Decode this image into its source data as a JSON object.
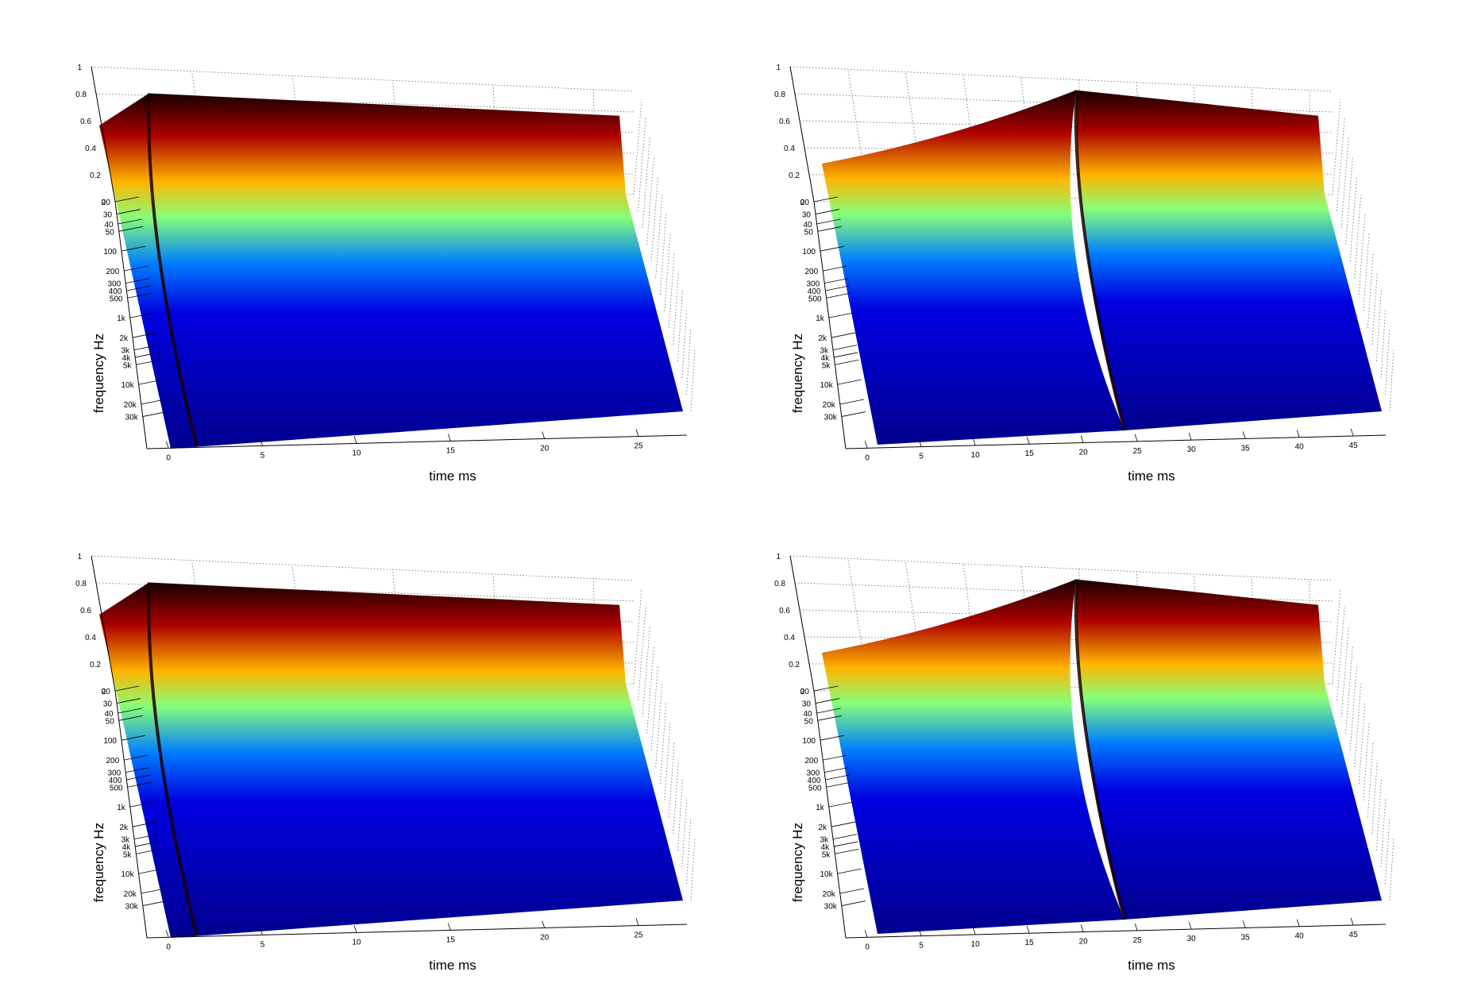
{
  "figure": {
    "colormap": [
      "#00008f",
      "#0000ff",
      "#0080ff",
      "#00ffff",
      "#80ff80",
      "#ffff00",
      "#ff8000",
      "#ff0000",
      "#800000",
      "#000000"
    ],
    "panels": [
      {
        "id": "top-left",
        "xlabel": "time   ms",
        "ylabel": "frequency   Hz",
        "xticks": [
          "0",
          "5",
          "10",
          "15",
          "20",
          "25"
        ],
        "yticks": [
          "20",
          "30",
          "40",
          "50",
          "100",
          "200",
          "300",
          "400",
          "500",
          "1k",
          "2k",
          "3k",
          "4k",
          "5k",
          "10k",
          "20k",
          "30k"
        ],
        "zticks": [
          "0",
          "0.2",
          "0.4",
          "0.6",
          "0.8",
          "1"
        ]
      },
      {
        "id": "top-right",
        "xlabel": "time   ms",
        "ylabel": "frequency   Hz",
        "xticks": [
          "0",
          "5",
          "10",
          "15",
          "20",
          "25",
          "30",
          "35",
          "40",
          "45"
        ],
        "yticks": [
          "20",
          "30",
          "40",
          "50",
          "100",
          "200",
          "300",
          "400",
          "500",
          "1k",
          "2k",
          "3k",
          "4k",
          "5k",
          "10k",
          "20k",
          "30k"
        ],
        "zticks": [
          "0",
          "0.2",
          "0.4",
          "0.6",
          "0.8",
          "1"
        ]
      },
      {
        "id": "bottom-left",
        "xlabel": "time   ms",
        "ylabel": "frequency   Hz",
        "xticks": [
          "0",
          "5",
          "10",
          "15",
          "20",
          "25"
        ],
        "yticks": [
          "20",
          "30",
          "40",
          "50",
          "100",
          "200",
          "300",
          "400",
          "500",
          "1k",
          "2k",
          "3k",
          "4k",
          "5k",
          "10k",
          "20k",
          "30k"
        ],
        "zticks": [
          "0",
          "0.2",
          "0.4",
          "0.6",
          "0.8",
          "1"
        ]
      },
      {
        "id": "bottom-right",
        "xlabel": "time   ms",
        "ylabel": "frequency   Hz",
        "xticks": [
          "0",
          "5",
          "10",
          "15",
          "20",
          "25",
          "30",
          "35",
          "40",
          "45"
        ],
        "yticks": [
          "20",
          "30",
          "40",
          "50",
          "100",
          "200",
          "300",
          "400",
          "500",
          "1k",
          "2k",
          "3k",
          "4k",
          "5k",
          "10k",
          "20k",
          "30k"
        ],
        "zticks": [
          "0",
          "0.2",
          "0.4",
          "0.6",
          "0.8",
          "1"
        ]
      }
    ]
  },
  "chart_data": [
    {
      "type": "surface",
      "title": "",
      "xlabel": "time   ms",
      "ylabel": "frequency   Hz",
      "zlabel": "",
      "xlim": [
        0,
        27
      ],
      "ylim": [
        20,
        30000
      ],
      "yscale": "log",
      "zlim": [
        0,
        1
      ],
      "grid": true,
      "impulse_time_ms": 0,
      "surface": "smooth"
    },
    {
      "type": "surface",
      "title": "",
      "xlabel": "time   ms",
      "ylabel": "frequency   Hz",
      "zlabel": "",
      "xlim": [
        0,
        47
      ],
      "ylim": [
        20,
        30000
      ],
      "yscale": "log",
      "zlim": [
        0,
        1
      ],
      "grid": true,
      "impulse_time_ms": 22,
      "surface": "smooth"
    },
    {
      "type": "surface",
      "title": "",
      "xlabel": "time   ms",
      "ylabel": "frequency   Hz",
      "zlabel": "",
      "xlim": [
        0,
        27
      ],
      "ylim": [
        20,
        30000
      ],
      "yscale": "log",
      "zlim": [
        0,
        1
      ],
      "grid": true,
      "impulse_time_ms": 0,
      "surface": "rippled"
    },
    {
      "type": "surface",
      "title": "",
      "xlabel": "time   ms",
      "ylabel": "frequency   Hz",
      "zlabel": "",
      "xlim": [
        0,
        47
      ],
      "ylim": [
        20,
        30000
      ],
      "yscale": "log",
      "zlim": [
        0,
        1
      ],
      "grid": true,
      "impulse_time_ms": 22,
      "surface": "rippled"
    }
  ]
}
